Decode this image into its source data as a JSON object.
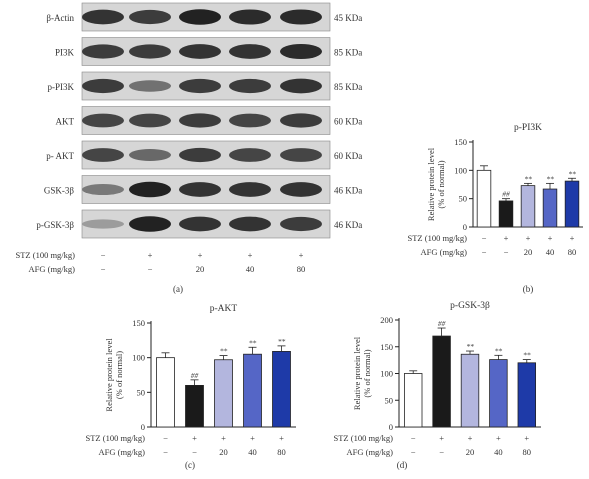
{
  "figure": {
    "blot_panel": {
      "panel_label": "(a)",
      "rows": [
        {
          "label": "β-Actin",
          "kda": "45 KDa"
        },
        {
          "label": "PI3K",
          "kda": "85 KDa"
        },
        {
          "label": "p-PI3K",
          "kda": "85 KDa"
        },
        {
          "label": "AKT",
          "kda": "60 KDa"
        },
        {
          "label": "p- AKT",
          "kda": "60 KDa"
        },
        {
          "label": "GSK-3β",
          "kda": "46 KDa"
        },
        {
          "label": "p-GSK-3β",
          "kda": "46 KDa"
        }
      ],
      "band_intensity": [
        [
          0.85,
          0.8,
          0.95,
          0.9,
          0.9
        ],
        [
          0.8,
          0.8,
          0.85,
          0.85,
          0.9
        ],
        [
          0.8,
          0.5,
          0.8,
          0.8,
          0.85
        ],
        [
          0.75,
          0.75,
          0.8,
          0.75,
          0.8
        ],
        [
          0.75,
          0.55,
          0.8,
          0.75,
          0.75
        ],
        [
          0.45,
          0.95,
          0.85,
          0.85,
          0.85
        ],
        [
          0.25,
          0.95,
          0.85,
          0.85,
          0.8
        ]
      ],
      "treatment": {
        "stz_label": "STZ (100 mg/kg)",
        "stz_values": [
          "−",
          "+",
          "+",
          "+",
          "+"
        ],
        "afg_label": "AFG (mg/kg)",
        "afg_values": [
          "−",
          "−",
          "20",
          "40",
          "80"
        ]
      }
    }
  },
  "chart_data": [
    {
      "type": "bar",
      "panel_label": "(b)",
      "title": "p-PI3K",
      "ylabel_line1": "Relative protein level",
      "ylabel_line2": "(% of normal)",
      "ylim": [
        0,
        150
      ],
      "yticks": [
        0,
        50,
        100,
        150
      ],
      "groups": [
        "1",
        "2",
        "3",
        "4",
        "5"
      ],
      "values": [
        100,
        46,
        73,
        67,
        81
      ],
      "errors": [
        8,
        4,
        4,
        10,
        5
      ],
      "annotations": [
        "",
        "##",
        "**",
        "**",
        "**"
      ],
      "colors": [
        "#ffffff",
        "#1a1a1a",
        "#b3b6de",
        "#5566c6",
        "#1e3aa8"
      ],
      "stz_label": "STZ (100 mg/kg)",
      "stz_values": [
        "−",
        "+",
        "+",
        "+",
        "+"
      ],
      "afg_label": "AFG (mg/kg)",
      "afg_values": [
        "−",
        "−",
        "20",
        "40",
        "80"
      ]
    },
    {
      "type": "bar",
      "panel_label": "(c)",
      "title": "p-AKT",
      "ylabel_line1": "Relative protein level",
      "ylabel_line2": "(% of normal)",
      "ylim": [
        0,
        150
      ],
      "yticks": [
        0,
        50,
        100,
        150
      ],
      "groups": [
        "1",
        "2",
        "3",
        "4",
        "5"
      ],
      "values": [
        100,
        60,
        97,
        105,
        109
      ],
      "errors": [
        7,
        8,
        6,
        10,
        8
      ],
      "annotations": [
        "",
        "##",
        "**",
        "**",
        "**"
      ],
      "colors": [
        "#ffffff",
        "#1a1a1a",
        "#b3b6de",
        "#5566c6",
        "#1e3aa8"
      ],
      "stz_label": "STZ (100 mg/kg)",
      "stz_values": [
        "−",
        "+",
        "+",
        "+",
        "+"
      ],
      "afg_label": "AFG (mg/kg)",
      "afg_values": [
        "−",
        "−",
        "20",
        "40",
        "80"
      ]
    },
    {
      "type": "bar",
      "panel_label": "(d)",
      "title": "p-GSK-3β",
      "ylabel_line1": "Relative protein level",
      "ylabel_line2": "(% of normal)",
      "ylim": [
        0,
        200
      ],
      "yticks": [
        0,
        50,
        100,
        150,
        200
      ],
      "groups": [
        "1",
        "2",
        "3",
        "4",
        "5"
      ],
      "values": [
        100,
        170,
        136,
        126,
        120
      ],
      "errors": [
        5,
        15,
        6,
        8,
        6
      ],
      "annotations": [
        "",
        "##",
        "**",
        "**",
        "**"
      ],
      "colors": [
        "#ffffff",
        "#1a1a1a",
        "#b3b6de",
        "#5566c6",
        "#1e3aa8"
      ],
      "stz_label": "STZ (100 mg/kg)",
      "stz_values": [
        "−",
        "+",
        "+",
        "+",
        "+"
      ],
      "afg_label": "AFG (mg/kg)",
      "afg_values": [
        "−",
        "−",
        "20",
        "40",
        "80"
      ]
    }
  ]
}
